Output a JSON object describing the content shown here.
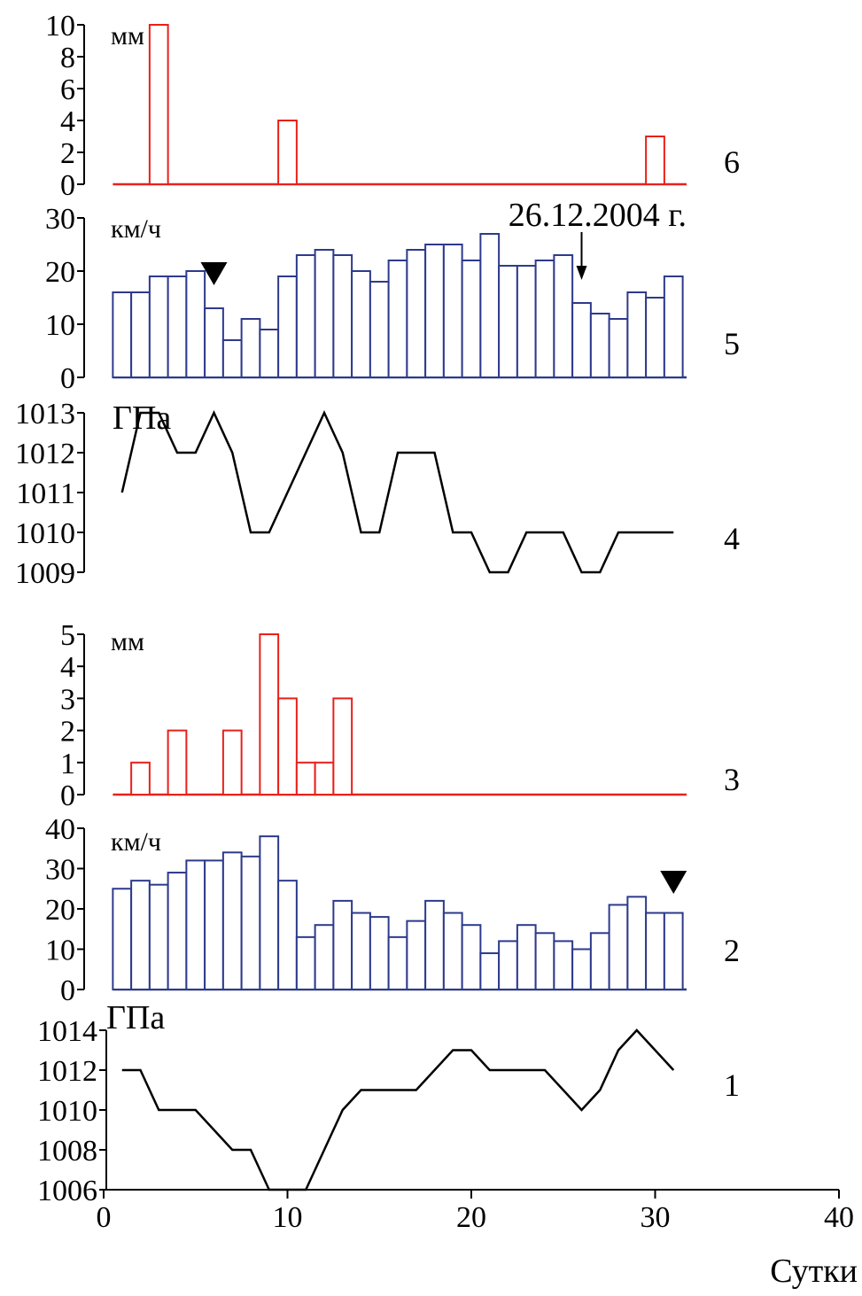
{
  "chart_data": {
    "type": "multi-panel",
    "shared_x": {
      "label": "Сутки",
      "range": [
        0,
        40
      ],
      "ticks": [
        0,
        10,
        20,
        30,
        40
      ]
    },
    "panels": [
      {
        "id": "6",
        "type": "bar",
        "unit": "мм",
        "color": "#e8201a",
        "ylim": [
          0,
          10
        ],
        "yticks": [
          0,
          2,
          4,
          6,
          8,
          10
        ],
        "x": [
          3,
          10,
          30
        ],
        "values": [
          10,
          4,
          3
        ]
      },
      {
        "id": "5",
        "type": "bar",
        "unit": "км/ч",
        "color": "#2d3a8c",
        "ylim": [
          0,
          30
        ],
        "yticks": [
          0,
          10,
          20,
          30
        ],
        "x": [
          1,
          2,
          3,
          4,
          5,
          6,
          7,
          8,
          9,
          10,
          11,
          12,
          13,
          14,
          15,
          16,
          17,
          18,
          19,
          20,
          21,
          22,
          23,
          24,
          25,
          26,
          27,
          28,
          29,
          30,
          31
        ],
        "values": [
          16,
          16,
          19,
          19,
          20,
          13,
          7,
          11,
          9,
          19,
          23,
          24,
          23,
          20,
          18,
          22,
          24,
          25,
          25,
          22,
          27,
          21,
          21,
          22,
          23,
          14,
          12,
          11,
          16,
          15,
          19
        ],
        "annotation": "26.12.2004 г.",
        "annotation_x": 26,
        "marker_x": 6
      },
      {
        "id": "4",
        "type": "line",
        "unit": "ГПа",
        "color": "#000000",
        "ylim": [
          1009,
          1013
        ],
        "yticks": [
          1009,
          1010,
          1011,
          1012,
          1013
        ],
        "x": [
          1,
          2,
          3,
          4,
          5,
          6,
          7,
          8,
          9,
          10,
          11,
          12,
          13,
          14,
          15,
          16,
          17,
          18,
          19,
          20,
          21,
          22,
          23,
          24,
          25,
          26,
          27,
          28,
          29,
          30,
          31
        ],
        "values": [
          1011,
          1013,
          1013,
          1012,
          1012,
          1013,
          1012,
          1010,
          1010,
          1011,
          1012,
          1013,
          1012,
          1010,
          1010,
          1012,
          1012,
          1012,
          1010,
          1010,
          1009,
          1009,
          1010,
          1010,
          1010,
          1009,
          1009,
          1010,
          1010,
          1010,
          1010
        ]
      },
      {
        "id": "3",
        "type": "bar",
        "unit": "мм",
        "color": "#e8201a",
        "ylim": [
          0,
          5
        ],
        "yticks": [
          0,
          1,
          2,
          3,
          4,
          5
        ],
        "x": [
          2,
          4,
          7,
          9,
          10,
          11,
          12,
          13
        ],
        "values": [
          1,
          2,
          2,
          5,
          3,
          1,
          1,
          3
        ]
      },
      {
        "id": "2",
        "type": "bar",
        "unit": "км/ч",
        "color": "#2d3a8c",
        "ylim": [
          0,
          40
        ],
        "yticks": [
          0,
          10,
          20,
          30,
          40
        ],
        "x": [
          1,
          2,
          3,
          4,
          5,
          6,
          7,
          8,
          9,
          10,
          11,
          12,
          13,
          14,
          15,
          16,
          17,
          18,
          19,
          20,
          21,
          22,
          23,
          24,
          25,
          26,
          27,
          28,
          29,
          30,
          31
        ],
        "values": [
          25,
          27,
          26,
          29,
          32,
          32,
          34,
          33,
          38,
          27,
          13,
          16,
          22,
          19,
          18,
          13,
          17,
          22,
          19,
          16,
          9,
          12,
          16,
          14,
          12,
          10,
          14,
          21,
          23,
          19,
          19
        ],
        "marker_x": 31
      },
      {
        "id": "1",
        "type": "line",
        "unit": "ГПа",
        "color": "#000000",
        "ylim": [
          1006,
          1014
        ],
        "yticks": [
          1006,
          1008,
          1010,
          1012,
          1014
        ],
        "x": [
          1,
          2,
          3,
          4,
          5,
          6,
          7,
          8,
          9,
          10,
          11,
          12,
          13,
          14,
          15,
          16,
          17,
          18,
          19,
          20,
          21,
          22,
          23,
          24,
          25,
          26,
          27,
          28,
          29,
          30,
          31
        ],
        "values": [
          1012,
          1012,
          1010,
          1010,
          1010,
          1009,
          1008,
          1008,
          1006,
          1006,
          1006,
          1008,
          1010,
          1011,
          1011,
          1011,
          1011,
          1012,
          1013,
          1013,
          1012,
          1012,
          1012,
          1012,
          1011,
          1010,
          1011,
          1013,
          1014,
          1013,
          1012
        ]
      }
    ]
  }
}
